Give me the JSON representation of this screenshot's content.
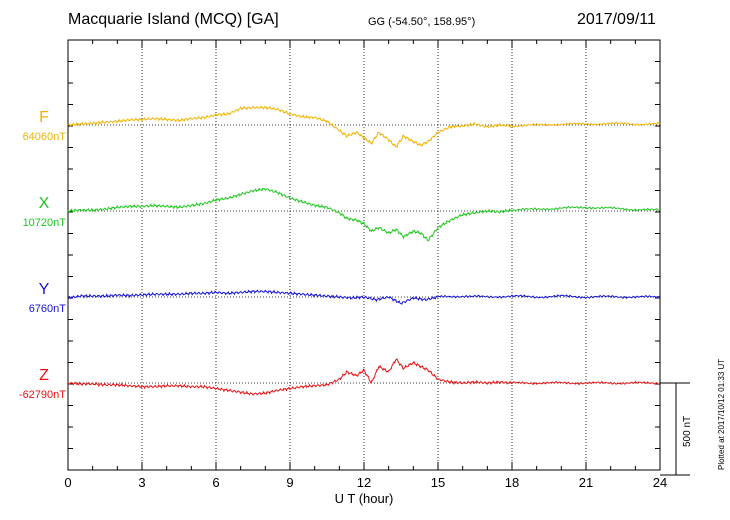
{
  "header": {
    "title": "Macquarie Island (MCQ)  [GA]",
    "coords": "GG (-54.50°, 158.95°)",
    "date": "2017/09/11"
  },
  "footer": {
    "plotted": "Plotted at 2017/10/12 01:33 UT",
    "scale": "500 nT"
  },
  "chart_data": {
    "type": "line",
    "xlabel": "U T (hour)",
    "xlim": [
      0,
      24
    ],
    "xticks": [
      0,
      3,
      6,
      9,
      12,
      15,
      18,
      21,
      24
    ],
    "scale_bar_nT": 500,
    "grid": true,
    "series": [
      {
        "name": "F",
        "baseline": "64060nT",
        "color": "#f0b400",
        "offset_row": 0,
        "x": [
          0,
          0.5,
          1,
          1.5,
          2,
          2.5,
          3,
          3.5,
          4,
          4.5,
          5,
          5.5,
          6,
          6.5,
          7,
          7.5,
          8,
          8.5,
          9,
          9.5,
          10,
          10.5,
          11,
          11.3,
          11.7,
          12,
          12.3,
          12.6,
          13,
          13.3,
          13.6,
          14,
          14.3,
          14.6,
          15,
          15.5,
          16,
          16.5,
          17,
          17.5,
          18,
          19,
          20,
          21,
          22,
          23,
          24
        ],
        "values": [
          0,
          5,
          10,
          15,
          20,
          28,
          30,
          35,
          30,
          25,
          35,
          40,
          55,
          60,
          90,
          95,
          95,
          85,
          60,
          45,
          40,
          20,
          -30,
          -60,
          -40,
          -70,
          -100,
          -40,
          -80,
          -120,
          -60,
          -90,
          -110,
          -90,
          -40,
          -10,
          -5,
          5,
          -10,
          0,
          -5,
          0,
          5,
          5,
          8,
          5,
          5
        ]
      },
      {
        "name": "X",
        "baseline": "10720nT",
        "color": "#1ec81e",
        "offset_row": 1,
        "x": [
          0,
          0.5,
          1,
          1.5,
          2,
          2.5,
          3,
          3.5,
          4,
          4.5,
          5,
          5.5,
          6,
          6.5,
          7,
          7.5,
          8,
          8.5,
          9,
          9.5,
          10,
          10.5,
          11,
          11.3,
          11.7,
          12,
          12.3,
          12.6,
          13,
          13.3,
          13.6,
          14,
          14.3,
          14.6,
          15,
          15.5,
          16,
          16.5,
          17,
          17.5,
          18,
          19,
          20,
          21,
          22,
          23,
          24
        ],
        "values": [
          0,
          5,
          5,
          10,
          20,
          25,
          25,
          30,
          25,
          20,
          30,
          40,
          60,
          70,
          90,
          110,
          120,
          100,
          70,
          50,
          30,
          20,
          -10,
          -40,
          -50,
          -70,
          -110,
          -90,
          -120,
          -100,
          -140,
          -110,
          -120,
          -160,
          -90,
          -50,
          -20,
          -10,
          0,
          -5,
          5,
          10,
          15,
          20,
          15,
          8,
          5
        ]
      },
      {
        "name": "Y",
        "baseline": "6760nT",
        "color": "#1414d2",
        "offset_row": 2,
        "x": [
          0,
          0.5,
          1,
          1.5,
          2,
          2.5,
          3,
          3.5,
          4,
          4.5,
          5,
          5.5,
          6,
          6.5,
          7,
          7.5,
          8,
          8.5,
          9,
          9.5,
          10,
          10.5,
          11,
          11.5,
          12,
          12.5,
          13,
          13.5,
          14,
          14.5,
          15,
          16,
          17,
          18,
          19,
          20,
          21,
          22,
          23,
          24
        ],
        "values": [
          -5,
          5,
          5,
          5,
          10,
          8,
          12,
          15,
          15,
          15,
          20,
          20,
          25,
          20,
          25,
          30,
          30,
          25,
          20,
          15,
          10,
          5,
          0,
          -5,
          0,
          -15,
          0,
          -35,
          -5,
          -15,
          0,
          5,
          0,
          5,
          0,
          5,
          0,
          2,
          0,
          0
        ]
      },
      {
        "name": "Z",
        "baseline": "-62790nT",
        "color": "#e61414",
        "offset_row": 3,
        "x": [
          0,
          0.5,
          1,
          1.5,
          2,
          2.5,
          3,
          3.5,
          4,
          4.5,
          5,
          5.5,
          6,
          6.5,
          7,
          7.5,
          8,
          8.5,
          9,
          9.5,
          10,
          10.5,
          11,
          11.3,
          11.7,
          12,
          12.3,
          12.6,
          13,
          13.3,
          13.6,
          14,
          14.3,
          14.6,
          15,
          15.5,
          16,
          16.5,
          17,
          17.5,
          18,
          19,
          20,
          21,
          22,
          23,
          24
        ],
        "values": [
          0,
          -5,
          -5,
          -10,
          -10,
          -15,
          -20,
          -20,
          -15,
          -15,
          -20,
          -20,
          -30,
          -40,
          -50,
          -60,
          -55,
          -40,
          -30,
          -20,
          -15,
          -10,
          20,
          60,
          40,
          70,
          0,
          90,
          60,
          130,
          80,
          110,
          90,
          70,
          20,
          5,
          0,
          5,
          0,
          5,
          0,
          0,
          0,
          0,
          0,
          0,
          0
        ]
      }
    ]
  }
}
